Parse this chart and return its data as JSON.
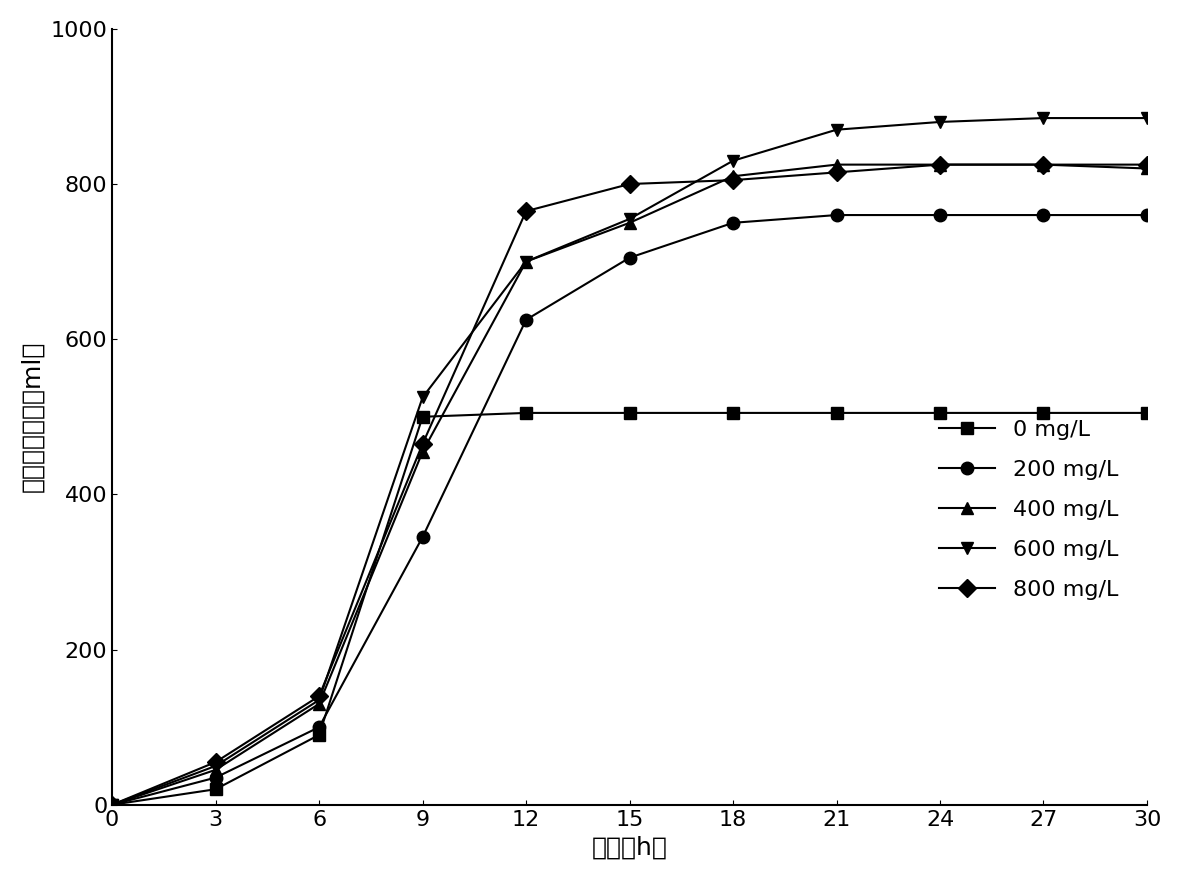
{
  "x": [
    0,
    3,
    6,
    9,
    12,
    15,
    18,
    21,
    24,
    27,
    30
  ],
  "series": [
    {
      "label": "0 mg/L",
      "marker": "s",
      "values": [
        0,
        20,
        90,
        500,
        505,
        505,
        505,
        505,
        505,
        505,
        505
      ]
    },
    {
      "label": "200 mg/L",
      "marker": "o",
      "values": [
        0,
        35,
        100,
        345,
        625,
        705,
        750,
        760,
        760,
        760,
        760
      ]
    },
    {
      "label": "400 mg/L",
      "marker": "^",
      "values": [
        0,
        45,
        130,
        455,
        700,
        750,
        810,
        825,
        825,
        825,
        820
      ]
    },
    {
      "label": "600 mg/L",
      "marker": "v",
      "values": [
        0,
        50,
        135,
        525,
        700,
        755,
        830,
        870,
        880,
        885,
        885
      ]
    },
    {
      "label": "800 mg/L",
      "marker": "D",
      "values": [
        0,
        55,
        140,
        465,
        765,
        800,
        805,
        815,
        825,
        825,
        825
      ]
    }
  ],
  "xlabel": "时间（h）",
  "ylabel": "累计決气产量（ml）",
  "xlim": [
    0,
    30
  ],
  "ylim": [
    0,
    1000
  ],
  "xticks": [
    0,
    3,
    6,
    9,
    12,
    15,
    18,
    21,
    24,
    27,
    30
  ],
  "yticks": [
    0,
    200,
    400,
    600,
    800,
    1000
  ],
  "line_color": "#000000",
  "marker_size": 9,
  "line_width": 1.5,
  "legend_fontsize": 16,
  "axis_fontsize": 18,
  "tick_fontsize": 16
}
